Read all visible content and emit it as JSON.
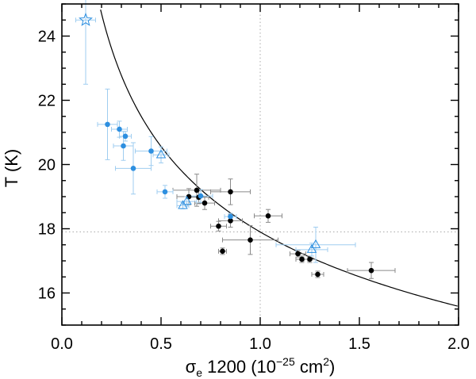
{
  "chart_data": {
    "type": "scatter",
    "title": "",
    "xlabel": {
      "symbol": "σ",
      "subscript": "e",
      "text": " 1200 (10",
      "exponent": "−25",
      "unit": " cm",
      "unit_exponent": "2",
      "close": ")"
    },
    "ylabel": "T (K)",
    "xlim": [
      0.0,
      2.0
    ],
    "ylim": [
      15.0,
      25.0
    ],
    "x_ticks": [
      "0.0",
      "0.5",
      "1.0",
      "1.5",
      "2.0"
    ],
    "y_ticks": [
      "16",
      "18",
      "20",
      "22",
      "24"
    ],
    "reference_lines": {
      "x": 1.0,
      "y": 17.9
    },
    "fit_curve": {
      "formula": "T = 17.9 * sigma^(-0.2)",
      "color": "#000000"
    },
    "colors": {
      "black_points": "#000000",
      "blue_points": "#2d8fe0",
      "blue_errorbars": "#9fcdf0",
      "black_errorbars": "#8a8a8a",
      "refline": "#aaaaaa"
    },
    "series": [
      {
        "name": "black_points",
        "marker": "circle",
        "points": [
          {
            "x": 0.64,
            "y": 19.0,
            "xerr": 0.06,
            "yerr": 0.25
          },
          {
            "x": 0.68,
            "y": 19.2,
            "xerr": 0.12,
            "yerr": 0.5
          },
          {
            "x": 0.69,
            "y": 18.98,
            "xerr": 0.05,
            "yerr": 0.2
          },
          {
            "x": 0.72,
            "y": 18.8,
            "xerr": 0.05,
            "yerr": 0.2
          },
          {
            "x": 0.79,
            "y": 18.08,
            "xerr": 0.04,
            "yerr": 0.15
          },
          {
            "x": 0.81,
            "y": 17.3,
            "xerr": 0.02,
            "yerr": 0.1
          },
          {
            "x": 0.85,
            "y": 19.15,
            "xerr": 0.1,
            "yerr": 0.4
          },
          {
            "x": 0.85,
            "y": 18.25,
            "xerr": 0.06,
            "yerr": 0.2
          },
          {
            "x": 0.95,
            "y": 17.65,
            "xerr": 0.14,
            "yerr": 0.45
          },
          {
            "x": 1.04,
            "y": 18.4,
            "xerr": 0.07,
            "yerr": 0.2
          },
          {
            "x": 1.19,
            "y": 17.22,
            "xerr": 0.04,
            "yerr": 0.1
          },
          {
            "x": 1.21,
            "y": 17.05,
            "xerr": 0.03,
            "yerr": 0.1
          },
          {
            "x": 1.25,
            "y": 17.05,
            "xerr": 0.03,
            "yerr": 0.1
          },
          {
            "x": 1.29,
            "y": 16.58,
            "xerr": 0.03,
            "yerr": 0.1
          },
          {
            "x": 1.56,
            "y": 16.7,
            "xerr": 0.12,
            "yerr": 0.25
          }
        ]
      },
      {
        "name": "blue_points",
        "marker": "circle",
        "points": [
          {
            "x": 0.23,
            "y": 21.25,
            "xerr": 0.05,
            "yerr": 1.1
          },
          {
            "x": 0.29,
            "y": 21.1,
            "xerr": 0.04,
            "yerr": 0.25
          },
          {
            "x": 0.31,
            "y": 20.58,
            "xerr": 0.05,
            "yerr": 0.45
          },
          {
            "x": 0.32,
            "y": 20.88,
            "xerr": 0.03,
            "yerr": 0.15
          },
          {
            "x": 0.36,
            "y": 19.88,
            "xerr": 0.09,
            "yerr": 0.8
          },
          {
            "x": 0.45,
            "y": 20.42,
            "xerr": 0.08,
            "yerr": 0.45
          },
          {
            "x": 0.52,
            "y": 19.15,
            "xerr": 0.04,
            "yerr": 0.2
          },
          {
            "x": 0.7,
            "y": 19.02,
            "xerr": 0.06,
            "yerr": 0.2
          },
          {
            "x": 0.85,
            "y": 18.38,
            "xerr": 0.03,
            "yerr": 0.1
          }
        ]
      },
      {
        "name": "blue_triangles",
        "marker": "triangle-open",
        "points": [
          {
            "x": 0.61,
            "y": 18.72,
            "xerr": 0.03,
            "yerr": 0.1
          },
          {
            "x": 0.63,
            "y": 18.85,
            "xerr": 0.05,
            "yerr": 0.15
          },
          {
            "x": 0.5,
            "y": 20.3,
            "xerr": 0.04,
            "yerr": 0.25
          },
          {
            "x": 1.26,
            "y": 17.35,
            "xerr": 0.08,
            "yerr": 0.2
          },
          {
            "x": 1.28,
            "y": 17.5,
            "xerr": 0.2,
            "yerr": 0.55
          }
        ]
      },
      {
        "name": "blue_star",
        "marker": "star-open",
        "points": [
          {
            "x": 0.12,
            "y": 24.5,
            "xerr": 0.05,
            "yerr": 2.0
          }
        ]
      }
    ]
  }
}
